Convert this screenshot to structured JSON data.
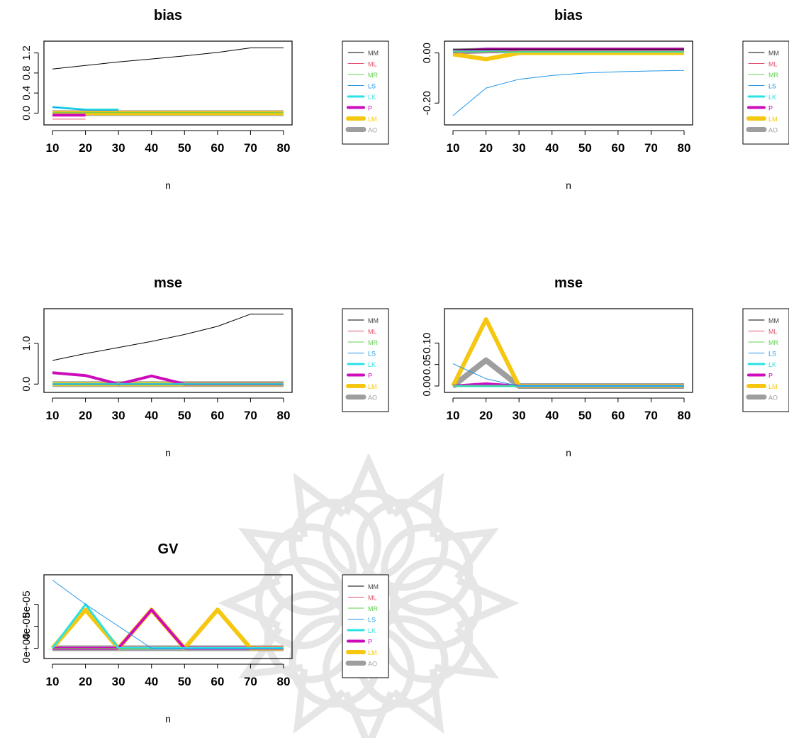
{
  "chart_data": [
    {
      "type": "line",
      "title": "bias",
      "xlabel": "n",
      "ylabel": "",
      "x": [
        10,
        20,
        30,
        40,
        50,
        60,
        70,
        80
      ],
      "xlim": [
        10,
        80
      ],
      "ylim": [
        -0.15,
        1.35
      ],
      "yticks": [
        0.0,
        0.4,
        0.8,
        1.2
      ],
      "ytick_labels": [
        "0.0",
        "0.4",
        "0.8",
        "1.2"
      ],
      "xticks": [
        10,
        20,
        30,
        40,
        50,
        60,
        70,
        80
      ],
      "xtick_labels": [
        "10",
        "20",
        "30",
        "40",
        "50",
        "60",
        "70",
        "80"
      ],
      "legend_position": "right",
      "series": [
        {
          "name": "MM",
          "color": "#000000",
          "width": 1,
          "values": [
            0.88,
            0.95,
            1.02,
            1.08,
            1.14,
            1.21,
            1.3,
            1.3
          ]
        },
        {
          "name": "ML",
          "color": "#df536b",
          "width": 1,
          "values": [
            -0.12,
            -0.12,
            null,
            null,
            null,
            null,
            null,
            null
          ]
        },
        {
          "name": "MR",
          "color": "#61d04f",
          "width": 1,
          "values": [
            0.01,
            0.01,
            0.01,
            0.01,
            0.01,
            0.01,
            0.01,
            0.01
          ]
        },
        {
          "name": "LS",
          "color": "#2297e6",
          "width": 1,
          "values": [
            0.12,
            0.06,
            0.06,
            null,
            null,
            null,
            null,
            null
          ]
        },
        {
          "name": "LK",
          "color": "#28e2e5",
          "width": 3,
          "values": [
            0.12,
            0.07,
            0.07,
            null,
            null,
            null,
            null,
            null
          ]
        },
        {
          "name": "P",
          "color": "#cd0bbc",
          "width": 4,
          "values": [
            -0.04,
            -0.04,
            null,
            null,
            null,
            null,
            null,
            null
          ]
        },
        {
          "name": "LM",
          "color": "#f5c710",
          "width": 6,
          "values": [
            0.0,
            0.0,
            0.0,
            0.0,
            0.0,
            0.0,
            0.0,
            0.0
          ]
        },
        {
          "name": "AO",
          "color": "#9e9e9e",
          "width": 8,
          "values": [
            0.0,
            0.0,
            0.0,
            0.0,
            0.0,
            0.0,
            0.0,
            0.0
          ]
        }
      ]
    },
    {
      "type": "line",
      "title": "bias",
      "xlabel": "n",
      "ylabel": "",
      "x": [
        10,
        20,
        30,
        40,
        50,
        60,
        70,
        80
      ],
      "xlim": [
        10,
        80
      ],
      "ylim": [
        -0.27,
        0.03
      ],
      "yticks": [
        -0.2,
        0.0
      ],
      "ytick_labels": [
        "-0.20",
        "0.00"
      ],
      "xticks": [
        10,
        20,
        30,
        40,
        50,
        60,
        70,
        80
      ],
      "xtick_labels": [
        "10",
        "20",
        "30",
        "40",
        "50",
        "60",
        "70",
        "80"
      ],
      "legend_position": "right",
      "series": [
        {
          "name": "MM",
          "color": "#000000",
          "width": 1,
          "values": [
            0.015,
            0.015,
            0.015,
            0.015,
            0.015,
            0.015,
            0.015,
            0.015
          ]
        },
        {
          "name": "ML",
          "color": "#df536b",
          "width": 1,
          "values": [
            0.0,
            0.0,
            0.01,
            0.01,
            0.01,
            0.01,
            0.01,
            0.01
          ]
        },
        {
          "name": "MR",
          "color": "#61d04f",
          "width": 1,
          "values": [
            0.005,
            0.005,
            0.005,
            0.005,
            0.005,
            0.005,
            0.005,
            0.005
          ]
        },
        {
          "name": "LS",
          "color": "#2297e6",
          "width": 1,
          "values": [
            -0.25,
            -0.14,
            -0.105,
            -0.09,
            -0.08,
            -0.075,
            -0.072,
            -0.07
          ]
        },
        {
          "name": "LK",
          "color": "#28e2e5",
          "width": 3,
          "values": [
            0.005,
            0.005,
            0.005,
            0.005,
            0.005,
            0.005,
            0.005,
            0.005
          ]
        },
        {
          "name": "P",
          "color": "#cd0bbc",
          "width": 4,
          "values": [
            0.005,
            0.015,
            0.015,
            0.015,
            0.015,
            0.015,
            0.015,
            0.015
          ]
        },
        {
          "name": "LM",
          "color": "#f5c710",
          "width": 6,
          "values": [
            -0.005,
            -0.025,
            0.0,
            0.0,
            0.0,
            0.0,
            0.0,
            0.0
          ]
        },
        {
          "name": "AO",
          "color": "#9e9e9e",
          "width": 8,
          "values": [
            0.005,
            0.01,
            0.01,
            0.01,
            0.01,
            0.01,
            0.01,
            0.01
          ]
        }
      ]
    },
    {
      "type": "line",
      "title": "mse",
      "xlabel": "n",
      "ylabel": "",
      "x": [
        10,
        20,
        30,
        40,
        50,
        60,
        70,
        80
      ],
      "xlim": [
        10,
        80
      ],
      "ylim": [
        -0.1,
        1.75
      ],
      "yticks": [
        0.0,
        1.0
      ],
      "ytick_labels": [
        "0.0",
        "1.0"
      ],
      "xticks": [
        10,
        20,
        30,
        40,
        50,
        60,
        70,
        80
      ],
      "xtick_labels": [
        "10",
        "20",
        "30",
        "40",
        "50",
        "60",
        "70",
        "80"
      ],
      "legend_position": "right",
      "series": [
        {
          "name": "MM",
          "color": "#000000",
          "width": 1,
          "values": [
            0.58,
            0.75,
            0.9,
            1.05,
            1.22,
            1.42,
            1.72,
            1.72
          ]
        },
        {
          "name": "ML",
          "color": "#df536b",
          "width": 1,
          "values": [
            0.0,
            0.0,
            0.0,
            0.0,
            0.0,
            0.0,
            0.0,
            0.0
          ]
        },
        {
          "name": "MR",
          "color": "#61d04f",
          "width": 1,
          "values": [
            0.0,
            0.0,
            0.0,
            0.0,
            0.0,
            0.0,
            0.0,
            0.0
          ]
        },
        {
          "name": "LS",
          "color": "#2297e6",
          "width": 1,
          "values": [
            0.0,
            0.0,
            0.0,
            0.0,
            0.0,
            0.0,
            0.0,
            0.0
          ]
        },
        {
          "name": "LK",
          "color": "#28e2e5",
          "width": 3,
          "values": [
            0.0,
            0.0,
            0.0,
            0.0,
            0.0,
            0.0,
            0.0,
            0.0
          ]
        },
        {
          "name": "P",
          "color": "#cd0bbc",
          "width": 4,
          "values": [
            0.28,
            0.21,
            0.0,
            0.2,
            0.0,
            0.0,
            0.0,
            0.0
          ]
        },
        {
          "name": "LM",
          "color": "#f5c710",
          "width": 6,
          "values": [
            0.0,
            0.0,
            0.0,
            0.0,
            0.0,
            0.0,
            0.0,
            0.0
          ]
        },
        {
          "name": "AO",
          "color": "#9e9e9e",
          "width": 8,
          "values": [
            0.0,
            0.0,
            0.0,
            0.0,
            0.0,
            0.0,
            0.0,
            0.0
          ]
        }
      ]
    },
    {
      "type": "line",
      "title": "mse",
      "xlabel": "n",
      "ylabel": "",
      "x": [
        10,
        20,
        30,
        40,
        50,
        60,
        70,
        80
      ],
      "xlim": [
        10,
        80
      ],
      "ylim": [
        -0.005,
        0.17
      ],
      "yticks": [
        0.0,
        0.05,
        0.1
      ],
      "ytick_labels": [
        "0.00",
        "0.05",
        "0.10"
      ],
      "xticks": [
        10,
        20,
        30,
        40,
        50,
        60,
        70,
        80
      ],
      "xtick_labels": [
        "10",
        "20",
        "30",
        "40",
        "50",
        "60",
        "70",
        "80"
      ],
      "legend_position": "right",
      "series": [
        {
          "name": "MM",
          "color": "#000000",
          "width": 1,
          "values": [
            0.0,
            0.0,
            0.0,
            0.0,
            0.0,
            0.0,
            0.0,
            0.0
          ]
        },
        {
          "name": "ML",
          "color": "#df536b",
          "width": 1,
          "values": [
            0.0,
            0.0,
            0.0,
            0.0,
            0.0,
            0.0,
            0.0,
            0.0
          ]
        },
        {
          "name": "MR",
          "color": "#61d04f",
          "width": 1,
          "values": [
            0.0,
            0.0,
            0.0,
            0.0,
            0.0,
            0.0,
            0.0,
            0.0
          ]
        },
        {
          "name": "LS",
          "color": "#2297e6",
          "width": 1,
          "values": [
            0.052,
            0.017,
            0.0,
            0.0,
            0.0,
            0.0,
            0.0,
            0.0
          ]
        },
        {
          "name": "LK",
          "color": "#28e2e5",
          "width": 3,
          "values": [
            0.0,
            0.0,
            0.0,
            0.0,
            0.0,
            0.0,
            0.0,
            0.0
          ]
        },
        {
          "name": "P",
          "color": "#cd0bbc",
          "width": 4,
          "values": [
            0.0,
            0.005,
            0.0,
            0.0,
            0.0,
            0.0,
            0.0,
            0.0
          ]
        },
        {
          "name": "LM",
          "color": "#f5c710",
          "width": 6,
          "values": [
            0.0,
            0.155,
            0.0,
            0.0,
            0.0,
            0.0,
            0.0,
            0.0
          ]
        },
        {
          "name": "AO",
          "color": "#9e9e9e",
          "width": 8,
          "values": [
            0.0,
            0.06,
            0.0,
            0.0,
            0.0,
            0.0,
            0.0,
            0.0
          ]
        }
      ]
    },
    {
      "type": "line",
      "title": "GV",
      "xlabel": "n",
      "ylabel": "",
      "x": [
        10,
        20,
        30,
        40,
        50,
        60,
        70,
        80
      ],
      "xlim": [
        10,
        80
      ],
      "ylim": [
        -1.1e-05,
        0.000126
      ],
      "yticks": [
        0.0,
        4e-05,
        8e-05
      ],
      "ytick_labels": [
        "0e+00",
        "4e-05",
        "8e-05"
      ],
      "xticks": [
        10,
        20,
        30,
        40,
        50,
        60,
        70,
        80
      ],
      "xtick_labels": [
        "10",
        "20",
        "30",
        "40",
        "50",
        "60",
        "70",
        "80"
      ],
      "legend_position": "right",
      "series": [
        {
          "name": "MM",
          "color": "#000000",
          "width": 1,
          "values": [
            0.0,
            0.0,
            0.0,
            0.0,
            0.0,
            0.0,
            0.0,
            0.0
          ]
        },
        {
          "name": "ML",
          "color": "#df536b",
          "width": 1,
          "values": [
            0.0,
            0.0,
            0.0,
            0.0,
            0.0,
            0.0,
            0.0,
            0.0
          ]
        },
        {
          "name": "MR",
          "color": "#61d04f",
          "width": 1,
          "values": [
            0.0,
            0.0,
            0.0,
            0.0,
            0.0,
            0.0,
            0.0,
            0.0
          ]
        },
        {
          "name": "LS",
          "color": "#2297e6",
          "width": 1,
          "values": [
            0.000124,
            8e-05,
            4e-05,
            0.0,
            0.0,
            0.0,
            0.0,
            0.0
          ]
        },
        {
          "name": "LK",
          "color": "#28e2e5",
          "width": 3,
          "values": [
            0.0,
            8e-05,
            0.0,
            0.0,
            0.0,
            0.0,
            0.0,
            0.0
          ]
        },
        {
          "name": "P",
          "color": "#cd0bbc",
          "width": 4,
          "values": [
            0.0,
            0.0,
            0.0,
            7e-05,
            0.0,
            0.0,
            0.0,
            0.0
          ]
        },
        {
          "name": "LM",
          "color": "#f5c710",
          "width": 6,
          "values": [
            0.0,
            7e-05,
            0.0,
            7e-05,
            0.0,
            7e-05,
            0.0,
            0.0
          ]
        },
        {
          "name": "AO",
          "color": "#9e9e9e",
          "width": 8,
          "values": [
            0.0,
            0.0,
            0.0,
            0.0,
            0.0,
            0.0,
            0.0,
            0.0
          ]
        }
      ]
    }
  ]
}
